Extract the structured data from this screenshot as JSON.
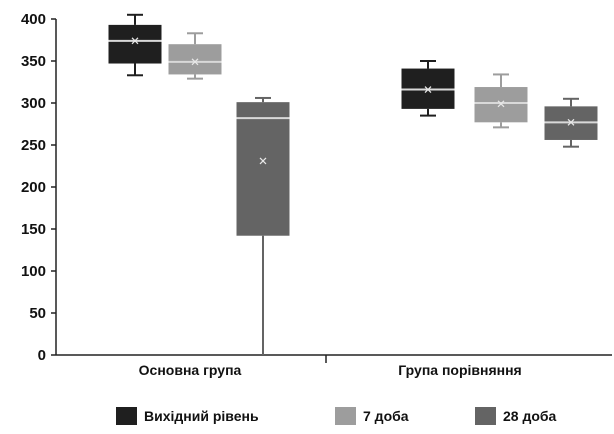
{
  "chart_data": {
    "type": "box",
    "categories": [
      "Основна група",
      "Група порівняння"
    ],
    "y_ticks": [
      0,
      50,
      100,
      150,
      200,
      250,
      300,
      350,
      400
    ],
    "ylim": [
      0,
      400
    ],
    "grid": false,
    "legend_position": "bottom",
    "series": [
      {
        "name": "Вихідний рівень",
        "color": "#1f1f1f",
        "boxes": [
          {
            "min": 333,
            "q1": 347,
            "median": 374,
            "q3": 393,
            "max": 405,
            "mean": 374
          },
          {
            "min": 285,
            "q1": 293,
            "median": 316,
            "q3": 341,
            "max": 350,
            "mean": 316
          }
        ]
      },
      {
        "name": "7 доба",
        "color": "#9d9d9d",
        "boxes": [
          {
            "min": 329,
            "q1": 334,
            "median": 349,
            "q3": 370,
            "max": 383,
            "mean": 349
          },
          {
            "min": 271,
            "q1": 277,
            "median": 300,
            "q3": 319,
            "max": 334,
            "mean": 299
          }
        ]
      },
      {
        "name": "28 доба",
        "color": "#646464",
        "boxes": [
          {
            "min": 0,
            "q1": 142,
            "median": 282,
            "q3": 301,
            "max": 306,
            "mean": 231
          },
          {
            "min": 248,
            "q1": 256,
            "median": 277,
            "q3": 296,
            "max": 305,
            "mean": 277
          }
        ]
      }
    ]
  }
}
